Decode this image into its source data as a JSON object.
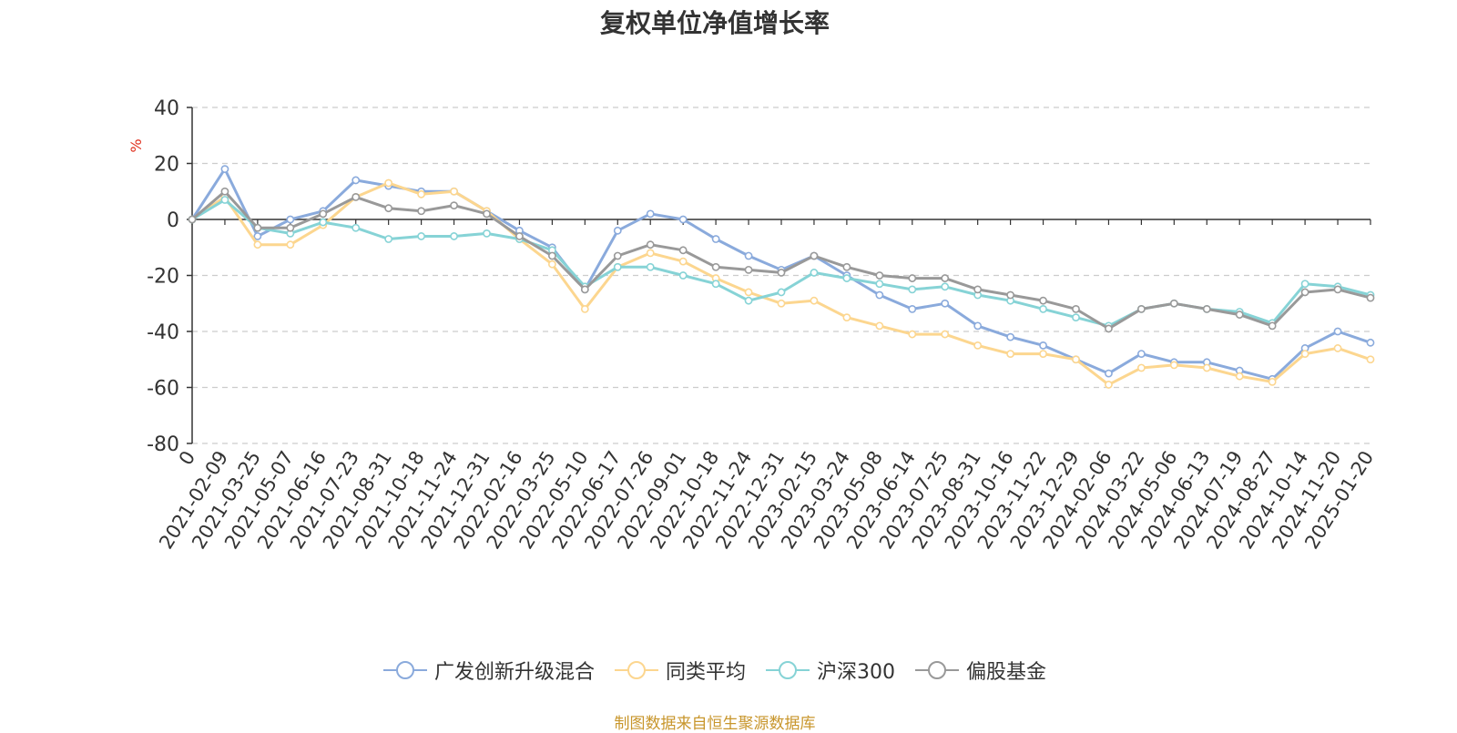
{
  "title": "复权单位净值增长率",
  "source_note": "制图数据来自恒生聚源数据库",
  "colors": {
    "广发创新升级混合": "#8aaadc",
    "同类平均": "#fcd68f",
    "沪深300": "#86d3d6",
    "偏股基金": "#999999",
    "axis": "#333333",
    "grid": "#cccccc",
    "unit": "#e0301e"
  },
  "chart_data": {
    "type": "line",
    "title": "复权单位净值增长率",
    "ylabel": "%",
    "ylim": [
      -80,
      40
    ],
    "yticks": [
      40,
      20,
      0,
      -20,
      -40,
      -60,
      -80
    ],
    "grid": true,
    "legend_position": "bottom",
    "x_tick_labels": [
      "0",
      "2021-02-09",
      "2021-03-25",
      "2021-05-07",
      "2021-06-16",
      "2021-07-23",
      "2021-08-31",
      "2021-10-18",
      "2021-11-24",
      "2021-12-31",
      "2022-02-16",
      "2022-03-25",
      "2022-05-10",
      "2022-06-17",
      "2022-07-26",
      "2022-09-01",
      "2022-10-18",
      "2022-11-24",
      "2022-12-31",
      "2023-02-15",
      "2023-03-24",
      "2023-05-08",
      "2023-06-14",
      "2023-07-25",
      "2023-08-31",
      "2023-10-16",
      "2023-11-22",
      "2023-12-29",
      "2024-02-06",
      "2024-03-22",
      "2024-05-06",
      "2024-06-13",
      "2024-07-19",
      "2024-08-27",
      "2024-10-14",
      "2024-11-20",
      "2025-01-20"
    ],
    "series": [
      {
        "name": "广发创新升级混合",
        "values": [
          0,
          18,
          -6,
          0,
          3,
          14,
          12,
          10,
          10,
          3,
          -4,
          -10,
          -25,
          -4,
          2,
          0,
          -7,
          -13,
          -18,
          -13,
          -20,
          -27,
          -32,
          -30,
          -38,
          -42,
          -45,
          -50,
          -55,
          -48,
          -51,
          -51,
          -54,
          -57,
          -46,
          -40,
          -44
        ]
      },
      {
        "name": "同类平均",
        "values": [
          0,
          8,
          -9,
          -9,
          -2,
          8,
          13,
          9,
          10,
          3,
          -7,
          -16,
          -32,
          -17,
          -12,
          -15,
          -21,
          -26,
          -30,
          -29,
          -35,
          -38,
          -41,
          -41,
          -45,
          -48,
          -48,
          -50,
          -59,
          -53,
          -52,
          -53,
          -56,
          -58,
          -48,
          -46,
          -50
        ]
      },
      {
        "name": "沪深300",
        "values": [
          0,
          7,
          -3,
          -5,
          -1,
          -3,
          -7,
          -6,
          -6,
          -5,
          -7,
          -11,
          -24,
          -17,
          -17,
          -20,
          -23,
          -29,
          -26,
          -19,
          -21,
          -23,
          -25,
          -24,
          -27,
          -29,
          -32,
          -35,
          -38,
          -32,
          -30,
          -32,
          -33,
          -37,
          -23,
          -24,
          -27
        ]
      },
      {
        "name": "偏股基金",
        "values": [
          0,
          10,
          -3,
          -3,
          2,
          8,
          4,
          3,
          5,
          2,
          -6,
          -13,
          -25,
          -13,
          -9,
          -11,
          -17,
          -18,
          -19,
          -13,
          -17,
          -20,
          -21,
          -21,
          -25,
          -27,
          -29,
          -32,
          -39,
          -32,
          -30,
          -32,
          -34,
          -38,
          -26,
          -25,
          -28
        ]
      }
    ]
  }
}
